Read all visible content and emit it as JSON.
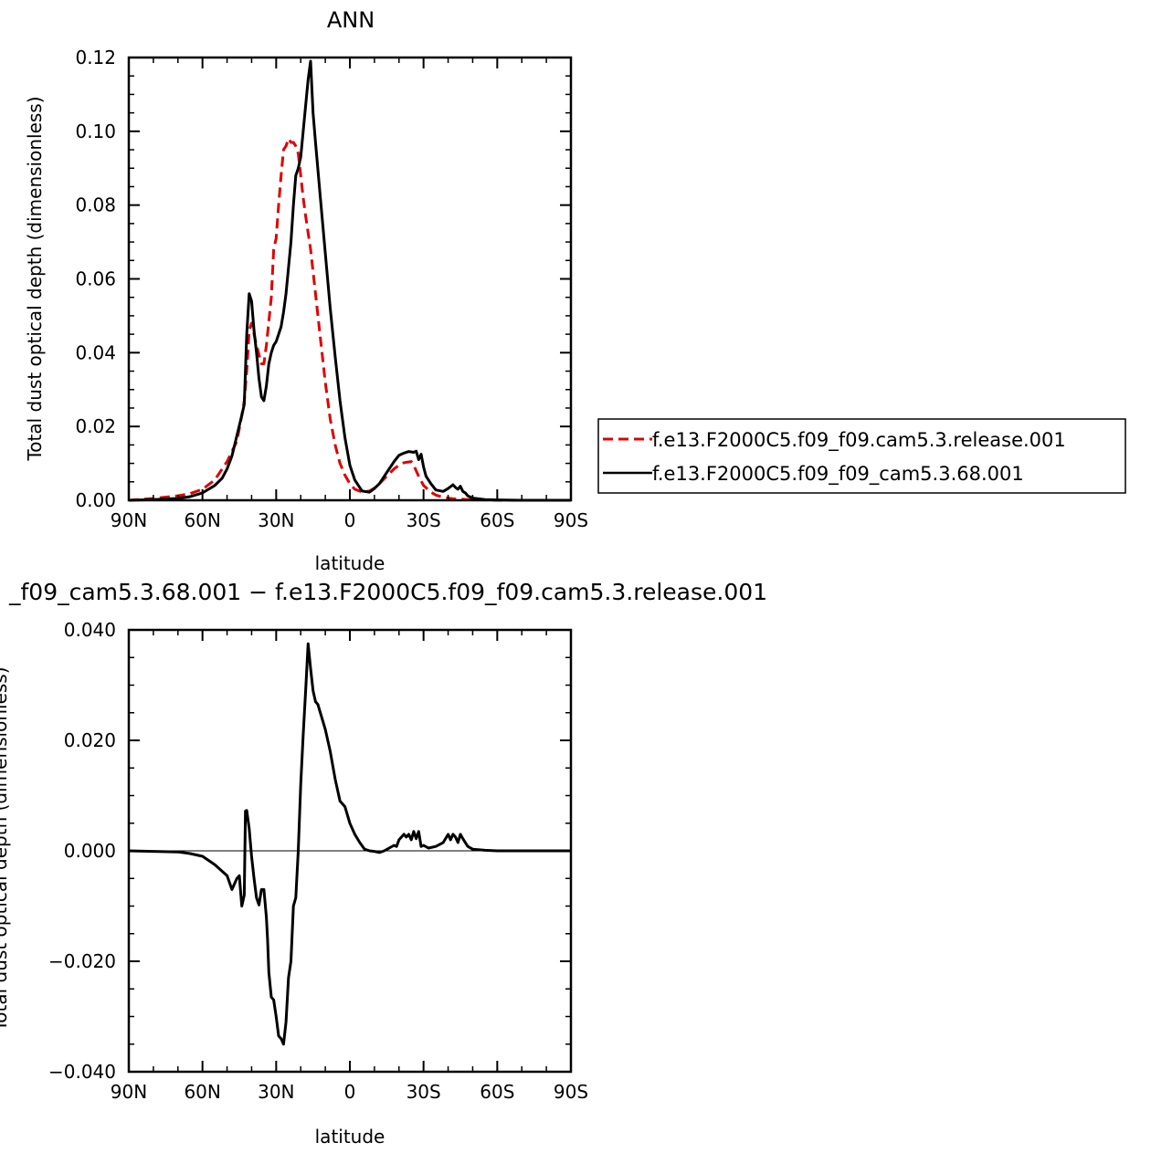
{
  "chart_data": [
    {
      "type": "line",
      "title": "ANN",
      "xlabel": "latitude",
      "ylabel": "Total dust optical depth (dimensionless)",
      "x_reversed": true,
      "xlim": [
        -90,
        90
      ],
      "ylim": [
        0,
        0.12
      ],
      "x_ticks": [
        {
          "value": 90,
          "label": "90N"
        },
        {
          "value": 60,
          "label": "60N"
        },
        {
          "value": 30,
          "label": "30N"
        },
        {
          "value": 0,
          "label": "0"
        },
        {
          "value": -30,
          "label": "30S"
        },
        {
          "value": -60,
          "label": "60S"
        },
        {
          "value": -90,
          "label": "90S"
        }
      ],
      "y_ticks": [
        {
          "value": 0.0,
          "label": "0.00"
        },
        {
          "value": 0.02,
          "label": "0.02"
        },
        {
          "value": 0.04,
          "label": "0.04"
        },
        {
          "value": 0.06,
          "label": "0.06"
        },
        {
          "value": 0.08,
          "label": "0.08"
        },
        {
          "value": 0.1,
          "label": "0.10"
        },
        {
          "value": 0.12,
          "label": "0.12"
        }
      ],
      "legend": {
        "placement": "right"
      },
      "series": [
        {
          "name": "f.e13.F2000C5.f09_f09.cam5.3.release.001",
          "color": "#e00000",
          "dash": "dashed",
          "x": [
            90,
            80,
            70,
            65,
            60,
            55,
            50,
            46,
            44,
            43,
            42,
            41,
            40,
            38,
            36,
            35,
            34,
            32,
            31,
            30,
            29,
            28,
            27,
            26,
            25,
            24,
            23,
            22,
            21,
            20,
            19,
            18,
            16,
            14,
            12,
            10,
            8,
            6,
            4,
            2,
            0,
            -2,
            -5,
            -8,
            -10,
            -12,
            -15,
            -18,
            -20,
            -22,
            -25,
            -26,
            -27,
            -28,
            -30,
            -33,
            -35,
            -38,
            -42,
            -48,
            -55,
            -60,
            -70,
            -90
          ],
          "y": [
            0.0,
            0.0005,
            0.0012,
            0.0018,
            0.003,
            0.0055,
            0.0105,
            0.016,
            0.023,
            0.027,
            0.035,
            0.046,
            0.048,
            0.042,
            0.037,
            0.037,
            0.042,
            0.055,
            0.068,
            0.071,
            0.08,
            0.088,
            0.095,
            0.096,
            0.098,
            0.097,
            0.097,
            0.096,
            0.094,
            0.088,
            0.082,
            0.077,
            0.068,
            0.056,
            0.044,
            0.032,
            0.022,
            0.015,
            0.01,
            0.0068,
            0.0045,
            0.003,
            0.0022,
            0.0025,
            0.0033,
            0.0045,
            0.0065,
            0.0085,
            0.0095,
            0.0102,
            0.0105,
            0.0095,
            0.008,
            0.0065,
            0.004,
            0.0022,
            0.0014,
            0.0008,
            0.0004,
            0.0002,
            0.0001,
            0.0,
            0.0,
            0.0
          ]
        },
        {
          "name": "f.e13.F2000C5.f09_f09_cam5.3.68.001",
          "color": "#000000",
          "dash": "solid",
          "x": [
            90,
            80,
            70,
            65,
            60,
            55,
            52,
            50,
            48,
            46,
            44,
            43,
            42,
            41,
            40,
            39,
            38,
            37,
            36,
            35,
            34,
            33,
            32,
            31,
            30,
            29,
            28,
            27,
            26,
            25,
            24,
            23,
            22,
            21,
            20,
            19,
            18,
            17,
            16,
            15,
            14,
            12,
            10,
            8,
            6,
            4,
            2,
            0,
            -2,
            -5,
            -8,
            -10,
            -12,
            -15,
            -18,
            -20,
            -22,
            -24,
            -26,
            -27,
            -28,
            -29,
            -30,
            -31,
            -33,
            -35,
            -38,
            -40,
            -42,
            -43,
            -44,
            -45,
            -46,
            -47,
            -48,
            -50,
            -55,
            -60,
            -70,
            -90
          ],
          "y": [
            0.0,
            0.0002,
            0.0005,
            0.001,
            0.002,
            0.004,
            0.006,
            0.0085,
            0.012,
            0.0175,
            0.023,
            0.026,
            0.045,
            0.056,
            0.054,
            0.046,
            0.04,
            0.033,
            0.028,
            0.027,
            0.031,
            0.037,
            0.04,
            0.042,
            0.043,
            0.045,
            0.047,
            0.051,
            0.056,
            0.063,
            0.07,
            0.08,
            0.088,
            0.09,
            0.093,
            0.1,
            0.107,
            0.114,
            0.119,
            0.105,
            0.097,
            0.082,
            0.067,
            0.052,
            0.039,
            0.027,
            0.017,
            0.0095,
            0.0055,
            0.0025,
            0.0022,
            0.0032,
            0.0045,
            0.0075,
            0.0105,
            0.0122,
            0.0128,
            0.0132,
            0.013,
            0.0133,
            0.011,
            0.0125,
            0.009,
            0.0065,
            0.0045,
            0.0028,
            0.0024,
            0.0032,
            0.0042,
            0.0035,
            0.003,
            0.0038,
            0.0024,
            0.002,
            0.0012,
            0.0006,
            0.0002,
            0.0001,
            0.0,
            0.0
          ]
        }
      ]
    },
    {
      "type": "line",
      "title": "_f09_cam5.3.68.001 − f.e13.F2000C5.f09_f09.cam5.3.release.001",
      "xlabel": "latitude",
      "ylabel": "Total dust optical depth (dimensionless)",
      "x_reversed": true,
      "xlim": [
        -90,
        90
      ],
      "ylim": [
        -0.04,
        0.04
      ],
      "x_ticks": [
        {
          "value": 90,
          "label": "90N"
        },
        {
          "value": 60,
          "label": "60N"
        },
        {
          "value": 30,
          "label": "30N"
        },
        {
          "value": 0,
          "label": "0"
        },
        {
          "value": -30,
          "label": "30S"
        },
        {
          "value": -60,
          "label": "60S"
        },
        {
          "value": -90,
          "label": "90S"
        }
      ],
      "y_ticks": [
        {
          "value": -0.04,
          "label": "−0.040"
        },
        {
          "value": -0.02,
          "label": "−0.020"
        },
        {
          "value": 0.0,
          "label": "0.000"
        },
        {
          "value": 0.02,
          "label": "0.020"
        },
        {
          "value": 0.04,
          "label": "0.040"
        }
      ],
      "series": [
        {
          "color": "#000000",
          "dash": "solid",
          "x": [
            90,
            80,
            70,
            65,
            60,
            55,
            50,
            48,
            46,
            45,
            44,
            43,
            42.5,
            42,
            41,
            40,
            39,
            38,
            37,
            36,
            35,
            34,
            33.5,
            33,
            32,
            31,
            30,
            29,
            28,
            27,
            26,
            25,
            24,
            23,
            22,
            21,
            20,
            19,
            18,
            17,
            16,
            15,
            14,
            13,
            12,
            10,
            8,
            6,
            4,
            2,
            0,
            -2,
            -4,
            -6,
            -8,
            -10,
            -12,
            -14,
            -16,
            -18,
            -19,
            -20,
            -21,
            -22,
            -23,
            -24,
            -25,
            -26,
            -27,
            -28,
            -29,
            -30,
            -32,
            -35,
            -38,
            -40,
            -41,
            -42,
            -43,
            -44,
            -45,
            -46,
            -47,
            -48,
            -50,
            -55,
            -60,
            -70,
            -90
          ],
          "y": [
            0.0,
            -0.0001,
            -0.0002,
            -0.0005,
            -0.001,
            -0.0025,
            -0.0045,
            -0.007,
            -0.005,
            -0.0045,
            -0.01,
            -0.008,
            0.0072,
            0.0073,
            0.004,
            -0.001,
            -0.005,
            -0.0085,
            -0.0098,
            -0.007,
            -0.007,
            -0.012,
            -0.016,
            -0.022,
            -0.0265,
            -0.027,
            -0.03,
            -0.0335,
            -0.034,
            -0.035,
            -0.031,
            -0.023,
            -0.02,
            -0.01,
            -0.0085,
            0.0,
            0.012,
            0.021,
            0.029,
            0.0375,
            0.033,
            0.029,
            0.027,
            0.0265,
            0.025,
            0.022,
            0.018,
            0.013,
            0.009,
            0.008,
            0.005,
            0.003,
            0.0015,
            0.0003,
            0.0,
            -0.0001,
            -0.0003,
            0.0,
            0.0005,
            0.001,
            0.0008,
            0.002,
            0.0025,
            0.003,
            0.0025,
            0.003,
            0.002,
            0.0035,
            0.0022,
            0.0035,
            0.0008,
            0.001,
            0.0005,
            0.0008,
            0.0015,
            0.003,
            0.002,
            0.003,
            0.0025,
            0.0015,
            0.003,
            0.0022,
            0.0015,
            0.0008,
            0.0003,
            0.0001,
            0.0,
            0.0,
            0.0
          ]
        }
      ]
    }
  ]
}
